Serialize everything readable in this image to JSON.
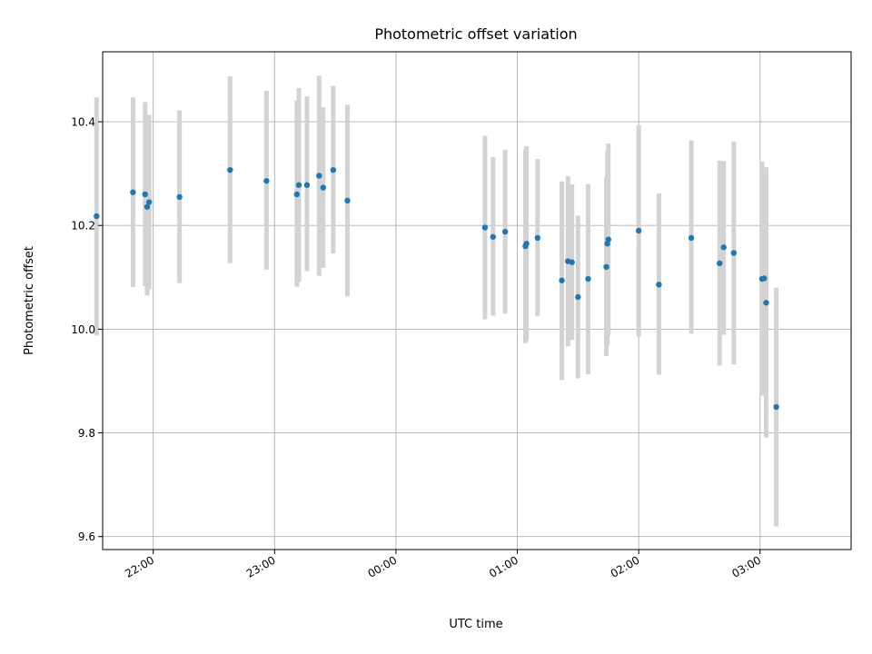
{
  "chart_data": {
    "type": "scatter",
    "title": "Photometric offset variation",
    "xlabel": "UTC time",
    "ylabel": "Photometric offset",
    "x_axis": {
      "kind": "time",
      "range": [
        "21:35",
        "03:45"
      ],
      "ticks": [
        "22:00",
        "23:00",
        "00:00",
        "01:00",
        "02:00",
        "03:00"
      ]
    },
    "y_axis": {
      "range": [
        9.575,
        10.535
      ],
      "ticks": [
        9.6,
        9.8,
        10.0,
        10.2,
        10.4
      ],
      "tick_labels": [
        "9.6",
        "9.8",
        "10.0",
        "10.2",
        "10.4"
      ]
    },
    "grid": true,
    "colors": {
      "point": "#1f77b4",
      "errorbar": "#d3d3d3"
    },
    "series": [
      {
        "points": [
          {
            "t": "21:32",
            "y": 10.218,
            "lo": 9.988,
            "hi": 10.447
          },
          {
            "t": "21:50",
            "y": 10.264,
            "lo": 10.081,
            "hi": 10.447
          },
          {
            "t": "21:56",
            "y": 10.26,
            "lo": 10.083,
            "hi": 10.438
          },
          {
            "t": "21:57",
            "y": 10.236,
            "lo": 10.065,
            "hi": 10.407
          },
          {
            "t": "21:58",
            "y": 10.245,
            "lo": 10.077,
            "hi": 10.413
          },
          {
            "t": "22:13",
            "y": 10.255,
            "lo": 10.089,
            "hi": 10.422
          },
          {
            "t": "22:38",
            "y": 10.307,
            "lo": 10.127,
            "hi": 10.488
          },
          {
            "t": "22:56",
            "y": 10.286,
            "lo": 10.115,
            "hi": 10.46
          },
          {
            "t": "23:11",
            "y": 10.26,
            "lo": 10.082,
            "hi": 10.441
          },
          {
            "t": "23:12",
            "y": 10.278,
            "lo": 10.091,
            "hi": 10.465
          },
          {
            "t": "23:16",
            "y": 10.278,
            "lo": 10.112,
            "hi": 10.449
          },
          {
            "t": "23:22",
            "y": 10.296,
            "lo": 10.103,
            "hi": 10.489
          },
          {
            "t": "23:24",
            "y": 10.273,
            "lo": 10.118,
            "hi": 10.428
          },
          {
            "t": "23:29",
            "y": 10.307,
            "lo": 10.146,
            "hi": 10.469
          },
          {
            "t": "23:36",
            "y": 10.248,
            "lo": 10.063,
            "hi": 10.433
          },
          {
            "t": "00:44",
            "y": 10.196,
            "lo": 10.019,
            "hi": 10.373
          },
          {
            "t": "00:48",
            "y": 10.178,
            "lo": 10.026,
            "hi": 10.332
          },
          {
            "t": "00:54",
            "y": 10.188,
            "lo": 10.03,
            "hi": 10.346
          },
          {
            "t": "01:04",
            "y": 10.16,
            "lo": 9.973,
            "hi": 10.347
          },
          {
            "t": "01:04.5",
            "y": 10.165,
            "lo": 9.978,
            "hi": 10.353
          },
          {
            "t": "01:10",
            "y": 10.176,
            "lo": 10.025,
            "hi": 10.328
          },
          {
            "t": "01:22",
            "y": 10.094,
            "lo": 9.902,
            "hi": 10.285
          },
          {
            "t": "01:25",
            "y": 10.131,
            "lo": 9.967,
            "hi": 10.295
          },
          {
            "t": "01:27",
            "y": 10.129,
            "lo": 9.979,
            "hi": 10.279
          },
          {
            "t": "01:30",
            "y": 10.062,
            "lo": 9.905,
            "hi": 10.219
          },
          {
            "t": "01:35",
            "y": 10.097,
            "lo": 9.913,
            "hi": 10.28
          },
          {
            "t": "01:44",
            "y": 10.12,
            "lo": 9.948,
            "hi": 10.293
          },
          {
            "t": "01:44.5",
            "y": 10.165,
            "lo": 9.968,
            "hi": 10.343
          },
          {
            "t": "01:45",
            "y": 10.173,
            "lo": 9.988,
            "hi": 10.358
          },
          {
            "t": "02:00",
            "y": 10.19,
            "lo": 9.986,
            "hi": 10.393
          },
          {
            "t": "02:10",
            "y": 10.086,
            "lo": 9.912,
            "hi": 10.262
          },
          {
            "t": "02:26",
            "y": 10.176,
            "lo": 9.991,
            "hi": 10.364
          },
          {
            "t": "02:40",
            "y": 10.127,
            "lo": 9.93,
            "hi": 10.325
          },
          {
            "t": "02:42",
            "y": 10.158,
            "lo": 9.989,
            "hi": 10.324
          },
          {
            "t": "02:47",
            "y": 10.147,
            "lo": 9.932,
            "hi": 10.362
          },
          {
            "t": "03:01",
            "y": 10.097,
            "lo": 9.872,
            "hi": 10.323
          },
          {
            "t": "03:02",
            "y": 10.098,
            "lo": 9.885,
            "hi": 10.312
          },
          {
            "t": "03:03",
            "y": 10.051,
            "lo": 9.791,
            "hi": 10.312
          },
          {
            "t": "03:08",
            "y": 9.85,
            "lo": 9.62,
            "hi": 10.08
          }
        ]
      }
    ]
  }
}
